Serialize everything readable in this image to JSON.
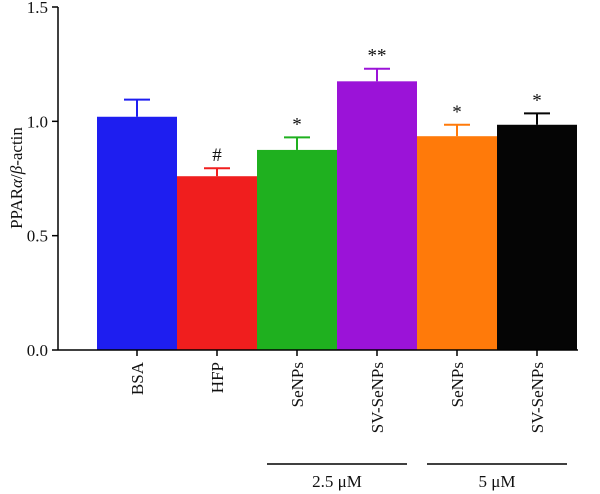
{
  "chart_data": {
    "type": "bar",
    "ylabel_parts": [
      "PPAR",
      "α",
      "/",
      "β",
      "-actin"
    ],
    "ylim": [
      0,
      1.5
    ],
    "yticks": [
      "0.0",
      "0.5",
      "1.0",
      "1.5"
    ],
    "categories": [
      "BSA",
      "HFP",
      "SeNPs",
      "SV-SeNPs",
      "SeNPs",
      "SV-SeNPs"
    ],
    "values": [
      1.02,
      0.76,
      0.875,
      1.175,
      0.935,
      0.985
    ],
    "errors": [
      0.075,
      0.035,
      0.055,
      0.055,
      0.05,
      0.05
    ],
    "annotations": [
      "",
      "#",
      "*",
      "**",
      "*",
      "*"
    ],
    "colors": [
      "#1e1ef0",
      "#f01e1e",
      "#1fb01f",
      "#9b13d8",
      "#ff7a0a",
      "#050505"
    ],
    "groups": [
      {
        "label": "2.5 μM",
        "from": 2,
        "to": 3
      },
      {
        "label": "5 μM",
        "from": 4,
        "to": 5
      }
    ],
    "grid": false,
    "legend": "none"
  }
}
